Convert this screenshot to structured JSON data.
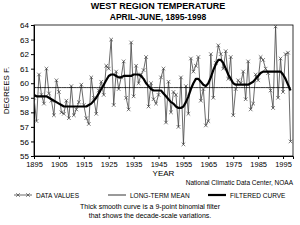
{
  "chart_data": {
    "type": "line",
    "title": "WEST REGION TEMPERATURE",
    "subtitle": "APRIL-JUNE, 1895-1998",
    "x_label": "YEAR",
    "y_label": "DEGREES F.",
    "annotations": [
      "National Climatic Data Center, NOAA",
      "Thick smooth curve is a 9-point binomial filter",
      "that shows the decade-scale variations."
    ],
    "legend": "bottom",
    "grid": false,
    "xlim": [
      1895,
      1999
    ],
    "xticks": [
      1895,
      1905,
      1915,
      1925,
      1935,
      1945,
      1955,
      1965,
      1975,
      1985,
      1995
    ],
    "ylim": [
      55,
      64
    ],
    "yticks": [
      55,
      56,
      57,
      58,
      59,
      60,
      61,
      62,
      63,
      64
    ],
    "x": [
      1895,
      1896,
      1897,
      1898,
      1899,
      1900,
      1901,
      1902,
      1903,
      1904,
      1905,
      1906,
      1907,
      1908,
      1909,
      1910,
      1911,
      1912,
      1913,
      1914,
      1915,
      1916,
      1917,
      1918,
      1919,
      1920,
      1921,
      1922,
      1923,
      1924,
      1925,
      1926,
      1927,
      1928,
      1929,
      1930,
      1931,
      1932,
      1933,
      1934,
      1935,
      1936,
      1937,
      1938,
      1939,
      1940,
      1941,
      1942,
      1943,
      1944,
      1945,
      1946,
      1947,
      1948,
      1949,
      1950,
      1951,
      1952,
      1953,
      1954,
      1955,
      1956,
      1957,
      1958,
      1959,
      1960,
      1961,
      1962,
      1963,
      1964,
      1965,
      1966,
      1967,
      1968,
      1969,
      1970,
      1971,
      1972,
      1973,
      1974,
      1975,
      1976,
      1977,
      1978,
      1979,
      1980,
      1981,
      1982,
      1983,
      1984,
      1985,
      1986,
      1987,
      1988,
      1989,
      1990,
      1991,
      1992,
      1993,
      1994,
      1995,
      1996,
      1997,
      1998
    ],
    "series": [
      {
        "name": "DATA VALUES",
        "color": "#444444",
        "marker": "x",
        "line_style": "solid",
        "values": [
          59.0,
          57.4,
          60.6,
          59.2,
          58.6,
          61.0,
          59.3,
          58.8,
          57.8,
          60.2,
          59.4,
          58.0,
          57.9,
          58.8,
          57.6,
          59.8,
          57.8,
          58.2,
          58.7,
          59.9,
          58.5,
          57.6,
          57.2,
          60.4,
          59.0,
          57.9,
          59.5,
          60.1,
          59.2,
          61.2,
          61.0,
          63.0,
          58.5,
          60.8,
          59.6,
          60.4,
          61.5,
          59.0,
          58.2,
          62.8,
          59.1,
          61.2,
          60.0,
          60.6,
          60.9,
          61.8,
          58.4,
          60.0,
          58.9,
          58.6,
          59.2,
          60.4,
          61.0,
          57.3,
          60.1,
          58.0,
          59.4,
          59.2,
          57.0,
          60.4,
          55.8,
          59.8,
          57.9,
          61.7,
          60.8,
          61.2,
          61.8,
          58.8,
          59.6,
          57.1,
          57.4,
          62.0,
          59.0,
          61.4,
          62.6,
          62.0,
          61.0,
          62.2,
          60.3,
          61.8,
          57.8,
          59.6,
          60.2,
          60.0,
          60.8,
          58.9,
          61.5,
          58.2,
          58.6,
          60.6,
          60.2,
          61.8,
          61.6,
          61.0,
          60.7,
          59.5,
          58.3,
          63.9,
          59.0,
          61.7,
          59.4,
          62.0,
          62.1,
          56.0
        ]
      },
      {
        "name": "LONG-TERM MEAN",
        "color": "#000000",
        "line_style": "solid",
        "values": [
          59.7,
          59.7,
          59.7,
          59.7,
          59.7,
          59.7,
          59.7,
          59.7,
          59.7,
          59.7,
          59.7,
          59.7,
          59.7,
          59.7,
          59.7,
          59.7,
          59.7,
          59.7,
          59.7,
          59.7,
          59.7,
          59.7,
          59.7,
          59.7,
          59.7,
          59.7,
          59.7,
          59.7,
          59.7,
          59.7,
          59.7,
          59.7,
          59.7,
          59.7,
          59.7,
          59.7,
          59.7,
          59.7,
          59.7,
          59.7,
          59.7,
          59.7,
          59.7,
          59.7,
          59.7,
          59.7,
          59.7,
          59.7,
          59.7,
          59.7,
          59.7,
          59.7,
          59.7,
          59.7,
          59.7,
          59.7,
          59.7,
          59.7,
          59.7,
          59.7,
          59.7,
          59.7,
          59.7,
          59.7,
          59.7,
          59.7,
          59.7,
          59.7,
          59.7,
          59.7,
          59.7,
          59.7,
          59.7,
          59.7,
          59.7,
          59.7,
          59.7,
          59.7,
          59.7,
          59.7,
          59.7,
          59.7,
          59.7,
          59.7,
          59.7,
          59.7,
          59.7,
          59.7,
          59.7,
          59.7,
          59.7,
          59.7,
          59.7,
          59.7,
          59.7,
          59.7,
          59.7,
          59.7,
          59.7,
          59.7,
          59.7,
          59.7,
          59.7,
          59.7
        ]
      },
      {
        "name": "FILTERED CURVE",
        "color": "#000000",
        "line_style": "thick",
        "values": [
          59.2,
          59.1,
          59.1,
          59.1,
          59.1,
          59.1,
          59.0,
          58.9,
          58.8,
          58.7,
          58.6,
          58.5,
          58.4,
          58.4,
          58.4,
          58.4,
          58.4,
          58.4,
          58.4,
          58.4,
          58.4,
          58.4,
          58.5,
          58.6,
          58.8,
          59.0,
          59.3,
          59.6,
          59.9,
          60.2,
          60.5,
          60.6,
          60.6,
          60.5,
          60.4,
          60.4,
          60.5,
          60.5,
          60.5,
          60.5,
          60.6,
          60.6,
          60.6,
          60.5,
          60.3,
          60.0,
          59.8,
          59.6,
          59.5,
          59.5,
          59.5,
          59.5,
          59.3,
          59.1,
          58.9,
          58.7,
          58.6,
          58.4,
          58.3,
          58.3,
          58.4,
          58.7,
          59.1,
          59.6,
          60.0,
          60.3,
          60.3,
          60.1,
          59.9,
          59.8,
          60.0,
          60.4,
          60.9,
          61.3,
          61.6,
          61.6,
          61.4,
          61.0,
          60.6,
          60.3,
          60.0,
          59.9,
          59.9,
          59.9,
          59.9,
          59.9,
          59.9,
          60.0,
          60.1,
          60.3,
          60.5,
          60.7,
          60.8,
          60.8,
          60.8,
          60.8,
          60.8,
          60.8,
          60.8,
          60.8,
          60.6,
          60.3,
          59.9,
          59.5
        ]
      }
    ]
  }
}
